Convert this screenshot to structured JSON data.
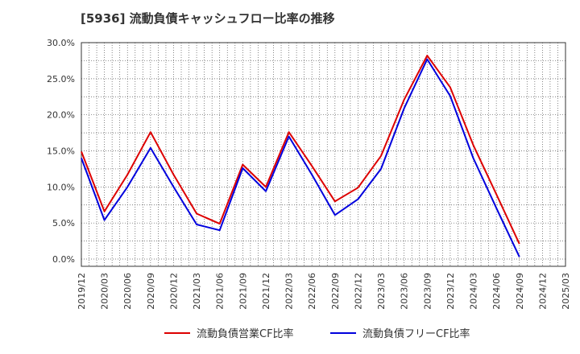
{
  "chart_data": {
    "type": "line",
    "title": "[5936]  流動負債キャッシュフロー比率の推移",
    "xlabel": "",
    "ylabel": "",
    "ylim": [
      -1,
      30
    ],
    "y_ticks": [
      "0.0%",
      "5.0%",
      "10.0%",
      "15.0%",
      "20.0%",
      "25.0%",
      "30.0%"
    ],
    "y_tick_values": [
      0,
      5,
      10,
      15,
      20,
      25,
      30
    ],
    "categories": [
      "2019/12",
      "2020/03",
      "2020/06",
      "2020/09",
      "2020/12",
      "2021/03",
      "2021/06",
      "2021/09",
      "2021/12",
      "2022/03",
      "2022/06",
      "2022/09",
      "2022/12",
      "2023/03",
      "2023/06",
      "2023/09",
      "2023/12",
      "2024/03",
      "2024/06",
      "2024/09",
      "2024/12",
      "2025/03"
    ],
    "grid": true,
    "legend_position": "bottom",
    "series": [
      {
        "name": "流動負債営業CF比率",
        "color": "#dd0000",
        "values": [
          14.9,
          6.6,
          11.7,
          17.6,
          11.7,
          6.3,
          4.9,
          13.1,
          10.0,
          17.6,
          12.9,
          8.0,
          9.9,
          14.3,
          22.1,
          28.2,
          23.8,
          15.8,
          9.0,
          2.1,
          null,
          null
        ]
      },
      {
        "name": "流動負債フリーCF比率",
        "color": "#0000dd",
        "values": [
          14.0,
          5.4,
          10.0,
          15.4,
          10.0,
          4.8,
          4.0,
          12.6,
          9.4,
          17.0,
          11.7,
          6.1,
          8.3,
          12.5,
          20.9,
          27.7,
          22.6,
          14.0,
          7.1,
          0.3,
          null,
          null
        ]
      }
    ]
  }
}
